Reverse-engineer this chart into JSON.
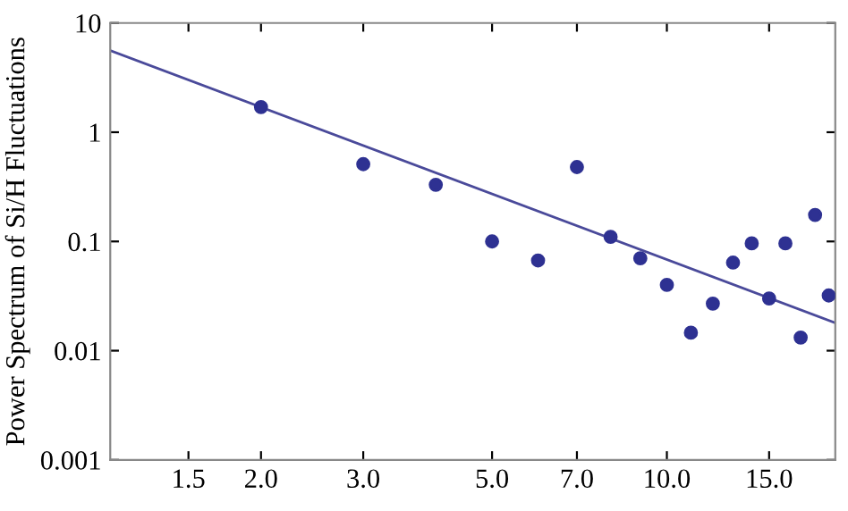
{
  "chart_data": {
    "type": "scatter",
    "ylabel": "Power Spectrum of Si/H Fluctuations",
    "log": "xy",
    "grid": false,
    "legend": false,
    "xlim": [
      1.1,
      19.5
    ],
    "ylim": [
      0.001,
      10
    ],
    "xticks": [
      {
        "value": 1.5,
        "label": "1.5"
      },
      {
        "value": 2,
        "label": "2.0"
      },
      {
        "value": 3,
        "label": "3.0"
      },
      {
        "value": 5,
        "label": "5.0"
      },
      {
        "value": 7,
        "label": "7.0"
      },
      {
        "value": 10,
        "label": "10.0"
      },
      {
        "value": 15,
        "label": "15.0"
      }
    ],
    "yticks": [
      0.001,
      0.01,
      0.1,
      1,
      10
    ],
    "series": [
      {
        "color": "#2e3192",
        "marker": "circle",
        "x": [
          2,
          3,
          4,
          5,
          6,
          7,
          8,
          9,
          10,
          11,
          12,
          13,
          14,
          15,
          16,
          17,
          18,
          19
        ],
        "values": [
          1.7,
          0.51,
          0.33,
          0.1,
          0.067,
          0.48,
          0.11,
          0.07,
          0.04,
          0.0146,
          0.027,
          0.064,
          0.096,
          0.03,
          0.096,
          0.0132,
          0.175,
          0.032
        ]
      },
      {
        "type": "line",
        "color": "#4a4a9a",
        "line_style": "solid",
        "x": [
          1.1,
          19.5
        ],
        "values": [
          5.6,
          0.018
        ]
      }
    ]
  }
}
